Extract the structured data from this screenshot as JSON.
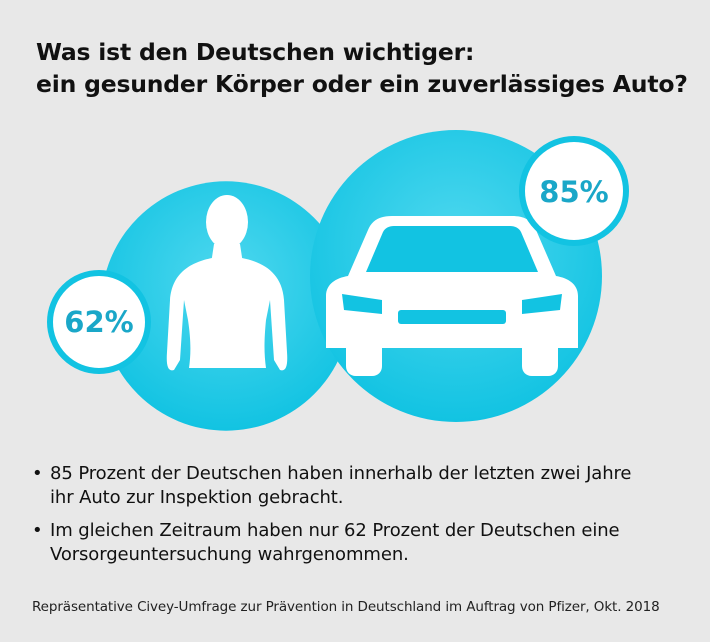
{
  "title_lines": [
    "Was ist den Deutschen wichtiger:",
    "ein gesunder Körper oder ein zuverlässiges Auto?"
  ],
  "chart_data": {
    "type": "bubble",
    "categories": [
      "Körper",
      "Auto"
    ],
    "values": [
      62,
      85
    ],
    "labels": [
      "62%",
      "85%"
    ],
    "icons": [
      "human-body-icon",
      "car-icon"
    ],
    "colors": {
      "circle": "#12c3e2",
      "badge_border": "#12c3e2",
      "badge_fill": "#ffffff",
      "label": "#1aa7c8",
      "icon": "#ffffff"
    }
  },
  "bullets": [
    "85 Prozent der Deutschen haben innerhalb der letzten zwei Jahre ihr Auto zur Inspektion gebracht.",
    "Im gleichen Zeitraum haben nur 62 Prozent der Deutschen eine Vorsorgeuntersuchung wahrgenommen."
  ],
  "footnote": "Repräsentative Civey-Umfrage zur Prävention in Deutschland im Auftrag von Pfizer, Okt. 2018"
}
